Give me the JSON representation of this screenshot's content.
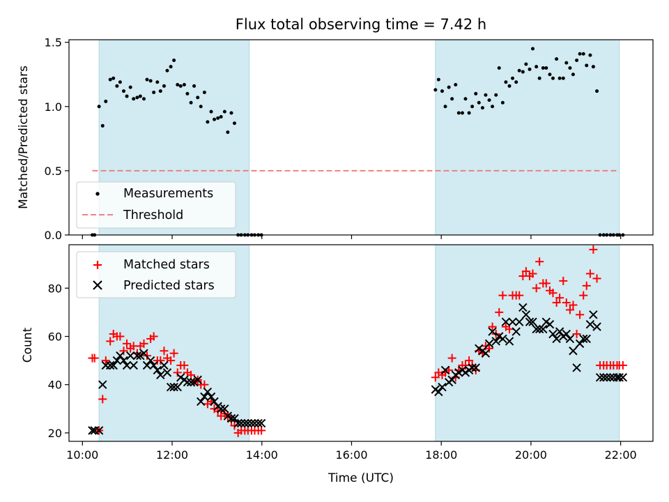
{
  "chart_data": [
    {
      "type": "scatter",
      "title": "Flux total observing time = 7.42 h",
      "xlabel": "",
      "ylabel": "Matched/Predicted stars",
      "xlim": [
        9.7,
        22.72
      ],
      "ylim": [
        0,
        1.52
      ],
      "yticks": [
        0.0,
        0.5,
        1.0,
        1.5
      ],
      "ytick_labels": [
        "0.0",
        "0.5",
        "1.0",
        "1.5"
      ],
      "xticks": [
        10,
        12,
        14,
        16,
        18,
        20,
        22
      ],
      "show_xtick_labels": false,
      "shaded_intervals": [
        [
          10.37,
          13.72
        ],
        [
          17.87,
          21.97
        ]
      ],
      "shade_color": "#add8e6",
      "legend_position": "lower left",
      "legend": [
        "Measurements",
        "Threshold"
      ],
      "series": [
        {
          "name": "Measurements",
          "marker": "dot",
          "color": "#000000",
          "x": [
            10.22,
            10.27,
            10.37,
            10.45,
            10.52,
            10.62,
            10.69,
            10.77,
            10.84,
            10.92,
            10.99,
            11.07,
            11.14,
            11.22,
            11.29,
            11.37,
            11.44,
            11.52,
            11.59,
            11.67,
            11.74,
            11.82,
            11.89,
            11.97,
            12.04,
            12.12,
            12.19,
            12.27,
            12.34,
            12.42,
            12.49,
            12.57,
            12.64,
            12.72,
            12.79,
            12.87,
            12.94,
            13.02,
            13.09,
            13.17,
            13.24,
            13.32,
            13.39,
            13.47,
            13.54,
            13.62,
            13.69,
            13.77,
            13.84,
            13.92,
            13.99,
            17.87,
            17.94,
            18.02,
            18.09,
            18.17,
            18.24,
            18.32,
            18.39,
            18.47,
            18.54,
            18.62,
            18.69,
            18.77,
            18.84,
            18.92,
            18.99,
            19.07,
            19.14,
            19.22,
            19.29,
            19.37,
            19.44,
            19.52,
            19.59,
            19.67,
            19.74,
            19.82,
            19.89,
            19.97,
            20.04,
            20.12,
            20.19,
            20.27,
            20.34,
            20.42,
            20.49,
            20.57,
            20.64,
            20.72,
            20.79,
            20.87,
            20.94,
            21.02,
            21.09,
            21.17,
            21.24,
            21.32,
            21.39,
            21.47,
            21.54,
            21.62,
            21.69,
            21.77,
            21.84,
            21.92,
            21.97,
            22.05
          ],
          "y": [
            0.0,
            0.0,
            1.0,
            0.85,
            1.04,
            1.21,
            1.22,
            1.16,
            1.19,
            1.12,
            1.08,
            1.15,
            1.06,
            1.07,
            1.08,
            1.06,
            1.21,
            1.2,
            1.11,
            1.19,
            1.12,
            1.16,
            1.28,
            1.31,
            1.36,
            1.17,
            1.16,
            1.17,
            1.1,
            1.03,
            1.16,
            1.07,
            1.0,
            1.11,
            0.88,
            0.96,
            0.9,
            0.91,
            0.92,
            0.96,
            0.8,
            0.95,
            0.87,
            0.0,
            0.0,
            0.0,
            0.0,
            0.0,
            0.0,
            0.0,
            0.0,
            1.13,
            1.21,
            1.12,
            1.0,
            1.15,
            1.06,
            1.17,
            0.95,
            0.95,
            1.06,
            0.95,
            1.0,
            1.1,
            1.03,
            0.99,
            1.09,
            1.05,
            1.0,
            1.09,
            1.3,
            1.03,
            1.19,
            1.16,
            1.22,
            1.19,
            1.28,
            1.27,
            1.33,
            1.29,
            1.45,
            1.31,
            1.22,
            1.3,
            1.3,
            1.25,
            1.22,
            1.37,
            1.22,
            1.22,
            1.34,
            1.3,
            1.25,
            1.36,
            1.41,
            1.41,
            1.32,
            1.4,
            1.31,
            1.12,
            0.0,
            0.0,
            0.0,
            0.0,
            0.0,
            0.0,
            0.0,
            0.0
          ]
        },
        {
          "name": "Threshold",
          "style": "dashed",
          "color": "#f08080",
          "x": [
            10.22,
            21.97
          ],
          "y": [
            0.5,
            0.5
          ]
        }
      ]
    },
    {
      "type": "scatter",
      "title": "",
      "xlabel": "Time (UTC)",
      "ylabel": "Count",
      "xlim": [
        9.7,
        22.72
      ],
      "ylim": [
        16.5,
        98
      ],
      "yticks": [
        20,
        40,
        60,
        80
      ],
      "ytick_labels": [
        "20",
        "40",
        "60",
        "80"
      ],
      "xticks": [
        10,
        12,
        14,
        16,
        18,
        20,
        22
      ],
      "xtick_labels": [
        "10:00",
        "12:00",
        "14:00",
        "16:00",
        "18:00",
        "20:00",
        "22:00"
      ],
      "shaded_intervals": [
        [
          10.37,
          13.72
        ],
        [
          17.87,
          21.97
        ]
      ],
      "shade_color": "#add8e6",
      "legend_position": "upper left",
      "legend": [
        "Matched stars",
        "Predicted stars"
      ],
      "series": [
        {
          "name": "Matched stars",
          "marker": "plus",
          "color": "#ff0000",
          "x": [
            10.22,
            10.27,
            10.37,
            10.45,
            10.52,
            10.62,
            10.69,
            10.77,
            10.84,
            10.92,
            10.99,
            11.07,
            11.14,
            11.22,
            11.29,
            11.37,
            11.44,
            11.52,
            11.59,
            11.67,
            11.74,
            11.82,
            11.89,
            11.97,
            12.04,
            12.12,
            12.19,
            12.27,
            12.34,
            12.42,
            12.49,
            12.57,
            12.64,
            12.72,
            12.79,
            12.87,
            12.94,
            13.02,
            13.09,
            13.17,
            13.24,
            13.32,
            13.39,
            13.47,
            13.54,
            13.62,
            13.69,
            13.77,
            13.84,
            13.92,
            13.99,
            17.87,
            17.94,
            18.02,
            18.09,
            18.17,
            18.24,
            18.32,
            18.39,
            18.47,
            18.54,
            18.62,
            18.69,
            18.77,
            18.84,
            18.92,
            18.99,
            19.07,
            19.14,
            19.22,
            19.29,
            19.37,
            19.44,
            19.52,
            19.59,
            19.67,
            19.74,
            19.82,
            19.89,
            19.97,
            20.04,
            20.12,
            20.19,
            20.27,
            20.34,
            20.42,
            20.49,
            20.57,
            20.64,
            20.72,
            20.79,
            20.87,
            20.94,
            21.02,
            21.09,
            21.17,
            21.24,
            21.32,
            21.39,
            21.47,
            21.54,
            21.62,
            21.69,
            21.77,
            21.84,
            21.92,
            21.97,
            22.05
          ],
          "y": [
            51,
            51,
            21,
            34,
            50,
            58,
            61,
            60,
            60,
            54,
            57,
            55,
            56,
            53,
            56,
            57,
            52,
            59,
            60,
            50,
            50,
            54,
            51,
            50,
            53,
            45,
            48,
            48,
            45,
            44,
            41,
            42,
            40,
            40,
            32,
            33,
            30,
            29,
            27,
            28,
            27,
            25,
            23,
            20,
            21,
            21,
            21,
            21,
            21,
            21,
            21,
            43,
            45,
            44,
            45,
            46,
            51,
            43,
            46,
            48,
            48,
            50,
            48,
            46,
            54,
            53,
            56,
            55,
            64,
            61,
            70,
            77,
            64,
            63,
            77,
            77,
            77,
            85,
            87,
            85,
            86,
            80,
            91,
            82,
            82,
            79,
            78,
            74,
            76,
            83,
            74,
            71,
            73,
            61,
            69,
            77,
            81,
            86,
            96,
            84,
            48,
            48,
            48,
            48,
            48,
            48,
            48,
            48
          ]
        },
        {
          "name": "Predicted stars",
          "marker": "x",
          "color": "#000000",
          "x": [
            10.22,
            10.27,
            10.37,
            10.45,
            10.52,
            10.62,
            10.69,
            10.77,
            10.84,
            10.92,
            10.99,
            11.07,
            11.14,
            11.22,
            11.29,
            11.37,
            11.44,
            11.52,
            11.59,
            11.67,
            11.74,
            11.82,
            11.89,
            11.97,
            12.04,
            12.12,
            12.19,
            12.27,
            12.34,
            12.42,
            12.49,
            12.57,
            12.64,
            12.72,
            12.79,
            12.87,
            12.94,
            13.02,
            13.09,
            13.17,
            13.24,
            13.32,
            13.39,
            13.47,
            13.54,
            13.62,
            13.69,
            13.77,
            13.84,
            13.92,
            13.99,
            17.87,
            17.94,
            18.02,
            18.09,
            18.17,
            18.24,
            18.32,
            18.39,
            18.47,
            18.54,
            18.62,
            18.69,
            18.77,
            18.84,
            18.92,
            18.99,
            19.07,
            19.14,
            19.22,
            19.29,
            19.37,
            19.44,
            19.52,
            19.59,
            19.67,
            19.74,
            19.82,
            19.89,
            19.97,
            20.04,
            20.12,
            20.19,
            20.27,
            20.34,
            20.42,
            20.49,
            20.57,
            20.64,
            20.72,
            20.79,
            20.87,
            20.94,
            21.02,
            21.09,
            21.17,
            21.24,
            21.32,
            21.39,
            21.47,
            21.54,
            21.62,
            21.69,
            21.77,
            21.84,
            21.92,
            21.97,
            22.05
          ],
          "y": [
            21,
            21,
            21,
            40,
            48,
            48,
            48,
            50,
            52,
            50,
            48,
            52,
            48,
            52,
            52,
            53,
            48,
            50,
            48,
            46,
            44,
            48,
            45,
            39,
            39,
            39,
            43,
            42,
            41,
            41,
            41,
            42,
            33,
            35,
            37,
            35,
            33,
            31,
            30,
            30,
            27,
            26,
            26,
            24,
            24,
            24,
            24,
            24,
            24,
            24,
            24,
            38,
            37,
            39,
            46,
            41,
            42,
            44,
            45,
            46,
            45,
            46,
            47,
            47,
            55,
            54,
            53,
            57,
            62,
            58,
            60,
            59,
            66,
            58,
            66,
            62,
            66,
            72,
            69,
            66,
            66,
            63,
            63,
            63,
            66,
            65,
            61,
            59,
            62,
            60,
            61,
            59,
            54,
            47,
            57,
            59,
            59,
            65,
            69,
            64,
            43,
            43,
            43,
            43,
            43,
            43,
            43,
            43
          ]
        }
      ]
    }
  ]
}
